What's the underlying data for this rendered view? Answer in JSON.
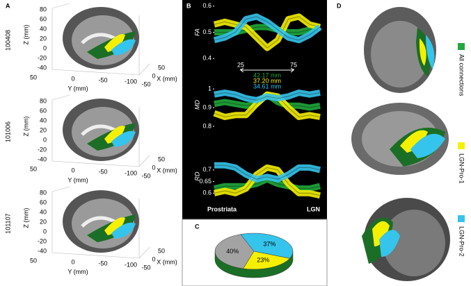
{
  "panel_labels": [
    "A",
    "B",
    "C",
    "D"
  ],
  "panel_a": {
    "subjects": [
      "100408",
      "101006",
      "101107"
    ],
    "z_label": "Z (mm)",
    "y_label": "Y (mm)",
    "x_label": "X (mm)",
    "z_ticks": [
      "80",
      "60",
      "40",
      "20",
      "0",
      "-20",
      "-40"
    ],
    "y_ticks": [
      "50",
      "0",
      "-50",
      "-100"
    ],
    "x_ticks": [
      "50",
      "0",
      "-50"
    ]
  },
  "chart_data": [
    {
      "type": "line",
      "y_label": "FA",
      "x": [
        0,
        10,
        20,
        30,
        40,
        50,
        60,
        70,
        80,
        90,
        100
      ],
      "xlim": [
        0,
        100
      ],
      "xticks": [
        25,
        75
      ],
      "ylim": [
        0.39,
        0.61
      ],
      "yticks": [
        0.4,
        0.5,
        0.6
      ],
      "annotations": [
        "42.17 mm",
        "37.20 mm",
        "34.61 mm"
      ],
      "series": [
        {
          "name": "All connections",
          "color": "#1fa83c",
          "values": [
            0.5,
            0.5,
            0.5,
            0.51,
            0.52,
            0.52,
            0.51,
            0.5,
            0.5,
            0.51,
            0.52
          ]
        },
        {
          "name": "LGN-Pro-1",
          "color": "#f5f000",
          "values": [
            0.53,
            0.54,
            0.53,
            0.52,
            0.48,
            0.44,
            0.47,
            0.55,
            0.56,
            0.53,
            0.52
          ]
        },
        {
          "name": "LGN-Pro-2",
          "color": "#35c4ec",
          "values": [
            0.47,
            0.48,
            0.5,
            0.55,
            0.56,
            0.54,
            0.51,
            0.48,
            0.47,
            0.49,
            0.52
          ]
        }
      ]
    },
    {
      "type": "line",
      "y_label": "MD",
      "x": [
        0,
        10,
        20,
        30,
        40,
        50,
        60,
        70,
        80,
        90,
        100
      ],
      "xlim": [
        0,
        100
      ],
      "ylim": [
        0.77,
        1.06
      ],
      "yticks": [
        0.8,
        0.9,
        1
      ],
      "series": [
        {
          "color": "#1fa83c",
          "values": [
            0.92,
            0.93,
            0.92,
            0.91,
            0.92,
            0.97,
            0.93,
            0.91,
            0.91,
            0.9,
            0.91
          ]
        },
        {
          "color": "#f5f000",
          "values": [
            0.87,
            0.85,
            0.86,
            0.86,
            0.92,
            0.97,
            0.96,
            0.9,
            0.85,
            0.86,
            0.85
          ]
        },
        {
          "color": "#35c4ec",
          "values": [
            0.97,
            0.98,
            0.97,
            0.95,
            0.94,
            0.96,
            0.95,
            0.96,
            0.98,
            0.97,
            0.98
          ]
        }
      ]
    },
    {
      "type": "line",
      "y_label": "RD",
      "x": [
        0,
        10,
        20,
        30,
        40,
        50,
        60,
        70,
        80,
        90,
        100
      ],
      "xlim": [
        0,
        100
      ],
      "ylim": [
        0.565,
        0.78
      ],
      "yticks": [
        0.6,
        0.65,
        0.7
      ],
      "x_start_label": "Prostriata",
      "x_end_label": "LGN",
      "series": [
        {
          "color": "#1fa83c",
          "values": [
            0.62,
            0.63,
            0.63,
            0.63,
            0.64,
            0.66,
            0.64,
            0.63,
            0.62,
            0.62,
            0.63
          ]
        },
        {
          "color": "#f5f000",
          "values": [
            0.6,
            0.61,
            0.6,
            0.62,
            0.68,
            0.71,
            0.7,
            0.64,
            0.6,
            0.6,
            0.59
          ]
        },
        {
          "color": "#35c4ec",
          "values": [
            0.72,
            0.72,
            0.71,
            0.68,
            0.66,
            0.67,
            0.66,
            0.68,
            0.71,
            0.71,
            0.7
          ]
        }
      ]
    },
    {
      "type": "pie",
      "values": [
        37,
        23,
        40
      ],
      "value_labels": [
        "37%",
        "23%",
        "40%"
      ],
      "colors": [
        "#35c4ec",
        "#f5f000",
        "#a3a3a3"
      ],
      "base_color": "#1b6e25"
    }
  ]
}
